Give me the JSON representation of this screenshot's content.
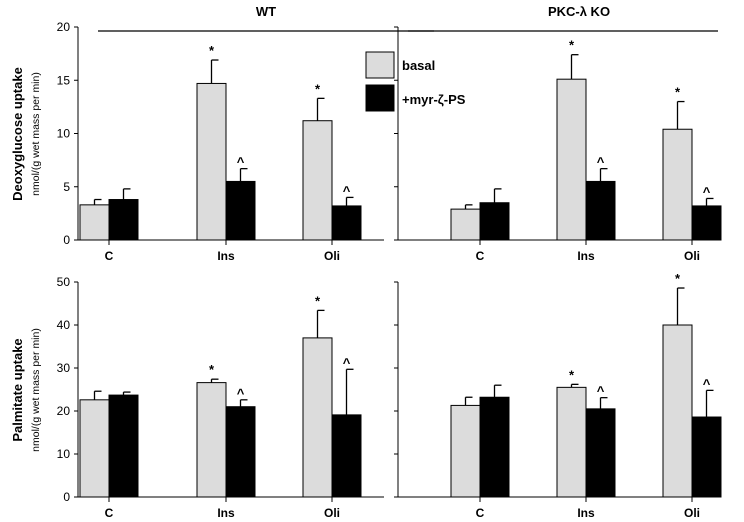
{
  "legend": {
    "basal_label": "basal",
    "myr_label": "+myr-ζ-PS",
    "basal_color": "#dcdcdc",
    "myr_color": "#000000"
  },
  "groups": {
    "wt_title": "WT",
    "ko_title": "PKC-λ KO"
  },
  "rows": {
    "top_ylabel": "Deoxyglucose uptake",
    "top_yunit": "nmol/(g wet mass per min)",
    "bottom_ylabel": "Palmitate uptake",
    "bottom_yunit": "nmol/(g wet mass per min)"
  },
  "chart_data": [
    {
      "id": "dg-wt",
      "type": "bar",
      "title": "WT",
      "ylabel": "Deoxyglucose uptake",
      "yunit": "nmol/(g wet mass per min)",
      "categories": [
        "C",
        "Ins",
        "Oli"
      ],
      "ylim": [
        0,
        20
      ],
      "yticks": [
        0,
        5,
        10,
        15,
        20
      ],
      "series": [
        {
          "name": "basal",
          "values": [
            3.3,
            14.7,
            11.2
          ],
          "errors": [
            0.5,
            2.2,
            2.1
          ],
          "marks": [
            "",
            "*",
            "*"
          ]
        },
        {
          "name": "+myr-ζ-PS",
          "values": [
            3.8,
            5.5,
            3.2
          ],
          "errors": [
            1.0,
            1.2,
            0.8
          ],
          "marks": [
            "",
            "^",
            "^"
          ]
        }
      ]
    },
    {
      "id": "dg-ko",
      "type": "bar",
      "title": "PKC-λ KO",
      "ylabel": "Deoxyglucose uptake",
      "yunit": "nmol/(g wet mass per min)",
      "categories": [
        "C",
        "Ins",
        "Oli"
      ],
      "ylim": [
        0,
        20
      ],
      "yticks": [],
      "series": [
        {
          "name": "basal",
          "values": [
            2.9,
            15.1,
            10.4
          ],
          "errors": [
            0.4,
            2.3,
            2.6
          ],
          "marks": [
            "",
            "*",
            "*"
          ]
        },
        {
          "name": "+myr-ζ-PS",
          "values": [
            3.5,
            5.5,
            3.2
          ],
          "errors": [
            1.3,
            1.2,
            0.7
          ],
          "marks": [
            "",
            "^",
            "^"
          ]
        }
      ]
    },
    {
      "id": "pa-wt",
      "type": "bar",
      "title": "",
      "ylabel": "Palmitate uptake",
      "yunit": "nmol/(g wet mass per min)",
      "categories": [
        "C",
        "Ins",
        "Oli"
      ],
      "ylim": [
        0,
        50
      ],
      "yticks": [
        0,
        10,
        20,
        30,
        40,
        50
      ],
      "series": [
        {
          "name": "basal",
          "values": [
            22.6,
            26.6,
            37.0
          ],
          "errors": [
            2.0,
            0.8,
            6.4
          ],
          "marks": [
            "",
            "*",
            "*"
          ]
        },
        {
          "name": "+myr-ζ-PS",
          "values": [
            23.7,
            21.0,
            19.1
          ],
          "errors": [
            0.7,
            1.6,
            10.6
          ],
          "marks": [
            "",
            "^",
            "^"
          ]
        }
      ]
    },
    {
      "id": "pa-ko",
      "type": "bar",
      "title": "",
      "ylabel": "Palmitate uptake",
      "yunit": "nmol/(g wet mass per min)",
      "categories": [
        "C",
        "Ins",
        "Oli"
      ],
      "ylim": [
        0,
        50
      ],
      "yticks": [],
      "series": [
        {
          "name": "basal",
          "values": [
            21.3,
            25.5,
            40.0
          ],
          "errors": [
            1.9,
            0.7,
            8.6
          ],
          "marks": [
            "",
            "*",
            "*"
          ]
        },
        {
          "name": "+myr-ζ-PS",
          "values": [
            23.2,
            20.5,
            18.6
          ],
          "errors": [
            2.8,
            2.6,
            6.2
          ],
          "marks": [
            "",
            "^",
            "^"
          ]
        }
      ]
    }
  ]
}
